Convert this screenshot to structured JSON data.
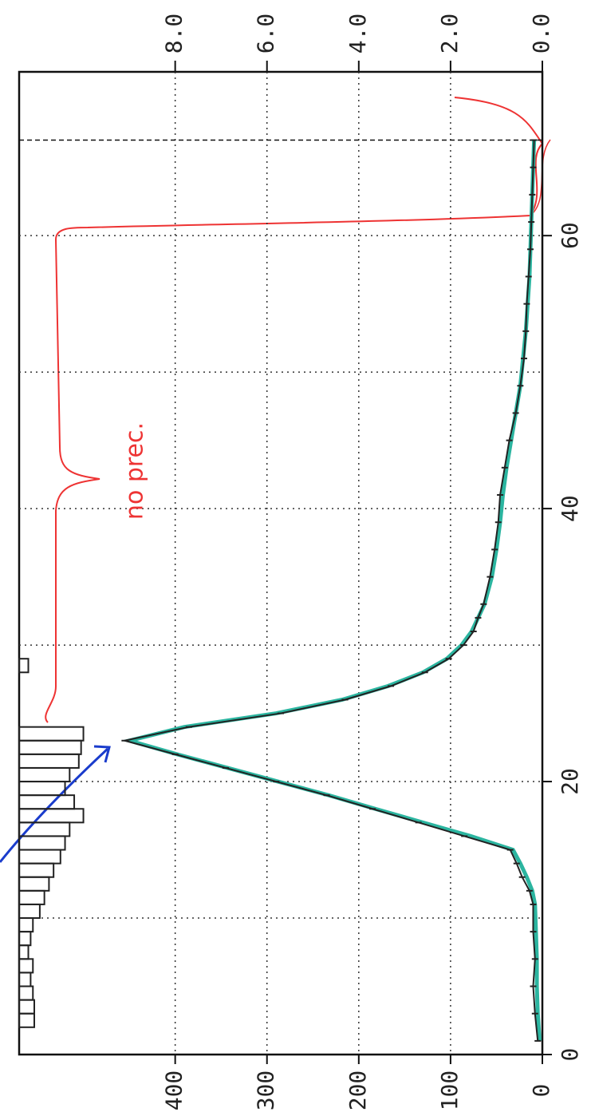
{
  "chart_data": {
    "type": "line",
    "x": [
      1,
      3,
      5,
      7,
      9,
      11,
      12,
      13,
      14,
      15,
      16,
      17,
      18,
      19,
      20,
      21,
      22,
      23,
      24,
      25,
      26,
      27,
      28,
      29,
      30,
      31,
      32,
      33,
      35,
      37,
      39,
      41,
      43,
      45,
      47,
      49,
      51,
      53,
      55,
      57,
      59,
      61,
      63,
      65,
      67
    ],
    "series": [
      {
        "color": "#2bb5a0",
        "values": [
          3,
          5,
          6,
          6,
          7,
          8,
          11,
          17,
          24,
          32,
          78,
          130,
          182,
          233,
          288,
          343,
          398,
          450,
          390,
          290,
          218,
          168,
          130,
          104,
          88,
          77,
          70,
          63,
          55,
          50,
          46,
          43,
          39,
          34,
          29,
          24,
          21,
          18,
          16,
          14,
          13,
          12,
          11,
          10,
          9
        ]
      },
      {
        "color": "#222222",
        "values": [
          5,
          8,
          10,
          8,
          10,
          10,
          14,
          22,
          28,
          35,
          85,
          135,
          185,
          235,
          290,
          345,
          400,
          455,
          385,
          285,
          215,
          165,
          128,
          102,
          86,
          75,
          70,
          64,
          57,
          52,
          48,
          46,
          41,
          36,
          29,
          24,
          20,
          18,
          17,
          15,
          13,
          12,
          11,
          10,
          9
        ]
      }
    ],
    "histogram": {
      "axis": "y2",
      "color": "#222222",
      "bins": [
        2,
        3,
        4,
        5,
        6,
        7,
        8,
        9,
        10,
        11,
        12,
        13,
        14,
        15,
        16,
        17,
        18,
        19,
        20,
        21,
        22,
        23,
        24,
        25,
        26,
        27,
        28,
        29
      ],
      "counts": [
        0.33,
        0.33,
        0.3,
        0.25,
        0.3,
        0.2,
        0.25,
        0.3,
        0.45,
        0.55,
        0.65,
        0.75,
        0.9,
        1.0,
        1.1,
        1.4,
        1.2,
        1.0,
        1.1,
        1.3,
        1.35,
        1.4,
        0,
        0,
        0,
        0,
        0.2
      ]
    },
    "xlim": [
      0,
      72
    ],
    "xticks": [
      0,
      20,
      40,
      60
    ],
    "xgrid": [
      10,
      20,
      30,
      40,
      50,
      60
    ],
    "vline": 67,
    "ylim": [
      0,
      570
    ],
    "yticks": [
      0,
      100,
      200,
      300,
      400
    ],
    "y2lim": [
      0,
      11.4
    ],
    "y2ticks": [
      {
        "value": 0,
        "label": "0.0"
      },
      {
        "value": 2,
        "label": "2.0"
      },
      {
        "value": 4,
        "label": "4.0"
      },
      {
        "value": 6,
        "label": "6.0"
      },
      {
        "value": 8,
        "label": "8.0"
      }
    ],
    "grid": true,
    "annotation": "no prec."
  }
}
